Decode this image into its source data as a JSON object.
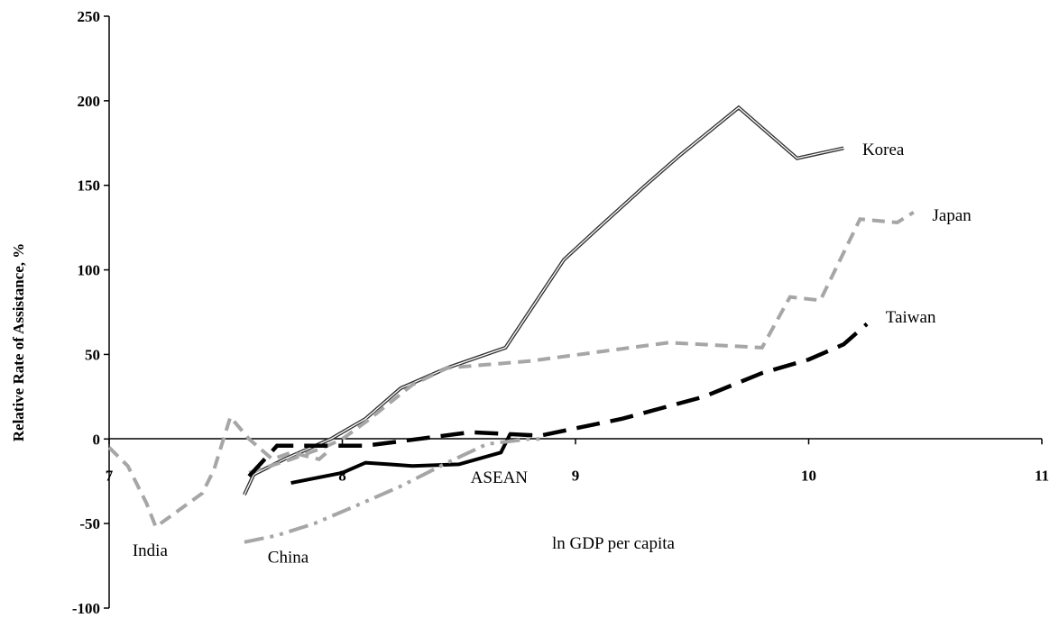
{
  "chart_data": {
    "type": "line",
    "title": "",
    "xlabel": "ln GDP per capita",
    "ylabel": "Relative Rate of Assistance, %",
    "xlim": [
      7,
      11
    ],
    "ylim": [
      -100,
      250
    ],
    "x_ticks": [
      "7",
      "8",
      "9",
      "10",
      "11"
    ],
    "y_ticks": [
      "250",
      "200",
      "150",
      "100",
      "50",
      "0",
      "-50",
      "-100"
    ],
    "grid": false,
    "legend": "none",
    "series": [
      {
        "name": "Korea",
        "style": "double",
        "color": "#333333",
        "points": [
          [
            7.58,
            -33
          ],
          [
            7.62,
            -21
          ],
          [
            7.75,
            -12
          ],
          [
            7.95,
            0
          ],
          [
            8.1,
            12
          ],
          [
            8.25,
            30
          ],
          [
            8.45,
            42
          ],
          [
            8.7,
            54
          ],
          [
            8.95,
            106
          ],
          [
            9.1,
            125
          ],
          [
            9.3,
            150
          ],
          [
            9.45,
            168
          ],
          [
            9.7,
            196
          ],
          [
            9.95,
            166
          ],
          [
            10.15,
            172
          ]
        ]
      },
      {
        "name": "Japan",
        "style": "dashed",
        "color": "#a6a6a6",
        "points": [
          [
            7.6,
            -20
          ],
          [
            7.78,
            -12
          ],
          [
            7.92,
            -5
          ],
          [
            8.0,
            0
          ],
          [
            8.1,
            10
          ],
          [
            8.3,
            32
          ],
          [
            8.45,
            42
          ],
          [
            8.8,
            46
          ],
          [
            9.4,
            57
          ],
          [
            9.8,
            54
          ],
          [
            9.92,
            84
          ],
          [
            10.05,
            82
          ],
          [
            10.22,
            130
          ],
          [
            10.38,
            128
          ],
          [
            10.45,
            134
          ]
        ]
      },
      {
        "name": "Taiwan",
        "style": "long-dashed",
        "color": "#000000",
        "points": [
          [
            7.6,
            -22
          ],
          [
            7.72,
            -4
          ],
          [
            8.1,
            -4
          ],
          [
            8.55,
            4
          ],
          [
            8.85,
            2
          ],
          [
            9.2,
            12
          ],
          [
            9.55,
            25
          ],
          [
            9.8,
            39
          ],
          [
            10.0,
            47
          ],
          [
            10.15,
            56
          ],
          [
            10.25,
            68
          ]
        ]
      },
      {
        "name": "ASEAN",
        "style": "solid-thick",
        "color": "#000000",
        "points": [
          [
            7.78,
            -26
          ],
          [
            8.0,
            -20
          ],
          [
            8.1,
            -14
          ],
          [
            8.2,
            -15
          ],
          [
            8.3,
            -16
          ],
          [
            8.5,
            -15
          ],
          [
            8.68,
            -8
          ],
          [
            8.72,
            3
          ]
        ]
      },
      {
        "name": "India",
        "style": "dashed",
        "color": "#a6a6a6",
        "points": [
          [
            7.0,
            -5
          ],
          [
            7.08,
            -16
          ],
          [
            7.16,
            -38
          ],
          [
            7.2,
            -52
          ],
          [
            7.32,
            -40
          ],
          [
            7.4,
            -32
          ],
          [
            7.45,
            -18
          ],
          [
            7.52,
            13
          ],
          [
            7.6,
            0
          ],
          [
            7.7,
            -12
          ],
          [
            7.78,
            -8
          ],
          [
            7.9,
            -12
          ],
          [
            7.95,
            -6
          ]
        ]
      },
      {
        "name": "China",
        "style": "dash-dot-dot",
        "color": "#a6a6a6",
        "points": [
          [
            7.58,
            -61
          ],
          [
            7.72,
            -57
          ],
          [
            7.88,
            -50
          ],
          [
            8.05,
            -40
          ],
          [
            8.25,
            -28
          ],
          [
            8.45,
            -14
          ],
          [
            8.62,
            -3
          ],
          [
            8.8,
            0
          ],
          [
            8.85,
            0
          ]
        ]
      }
    ],
    "annotations": [
      {
        "text": "Korea",
        "x": 10.23,
        "y": 168
      },
      {
        "text": "Japan",
        "x": 10.53,
        "y": 129
      },
      {
        "text": "Taiwan",
        "x": 10.33,
        "y": 69
      },
      {
        "text": "ASEAN",
        "x": 8.55,
        "y": -26
      },
      {
        "text": "India",
        "x": 7.1,
        "y": -69
      },
      {
        "text": "China",
        "x": 7.68,
        "y": -73
      }
    ]
  }
}
